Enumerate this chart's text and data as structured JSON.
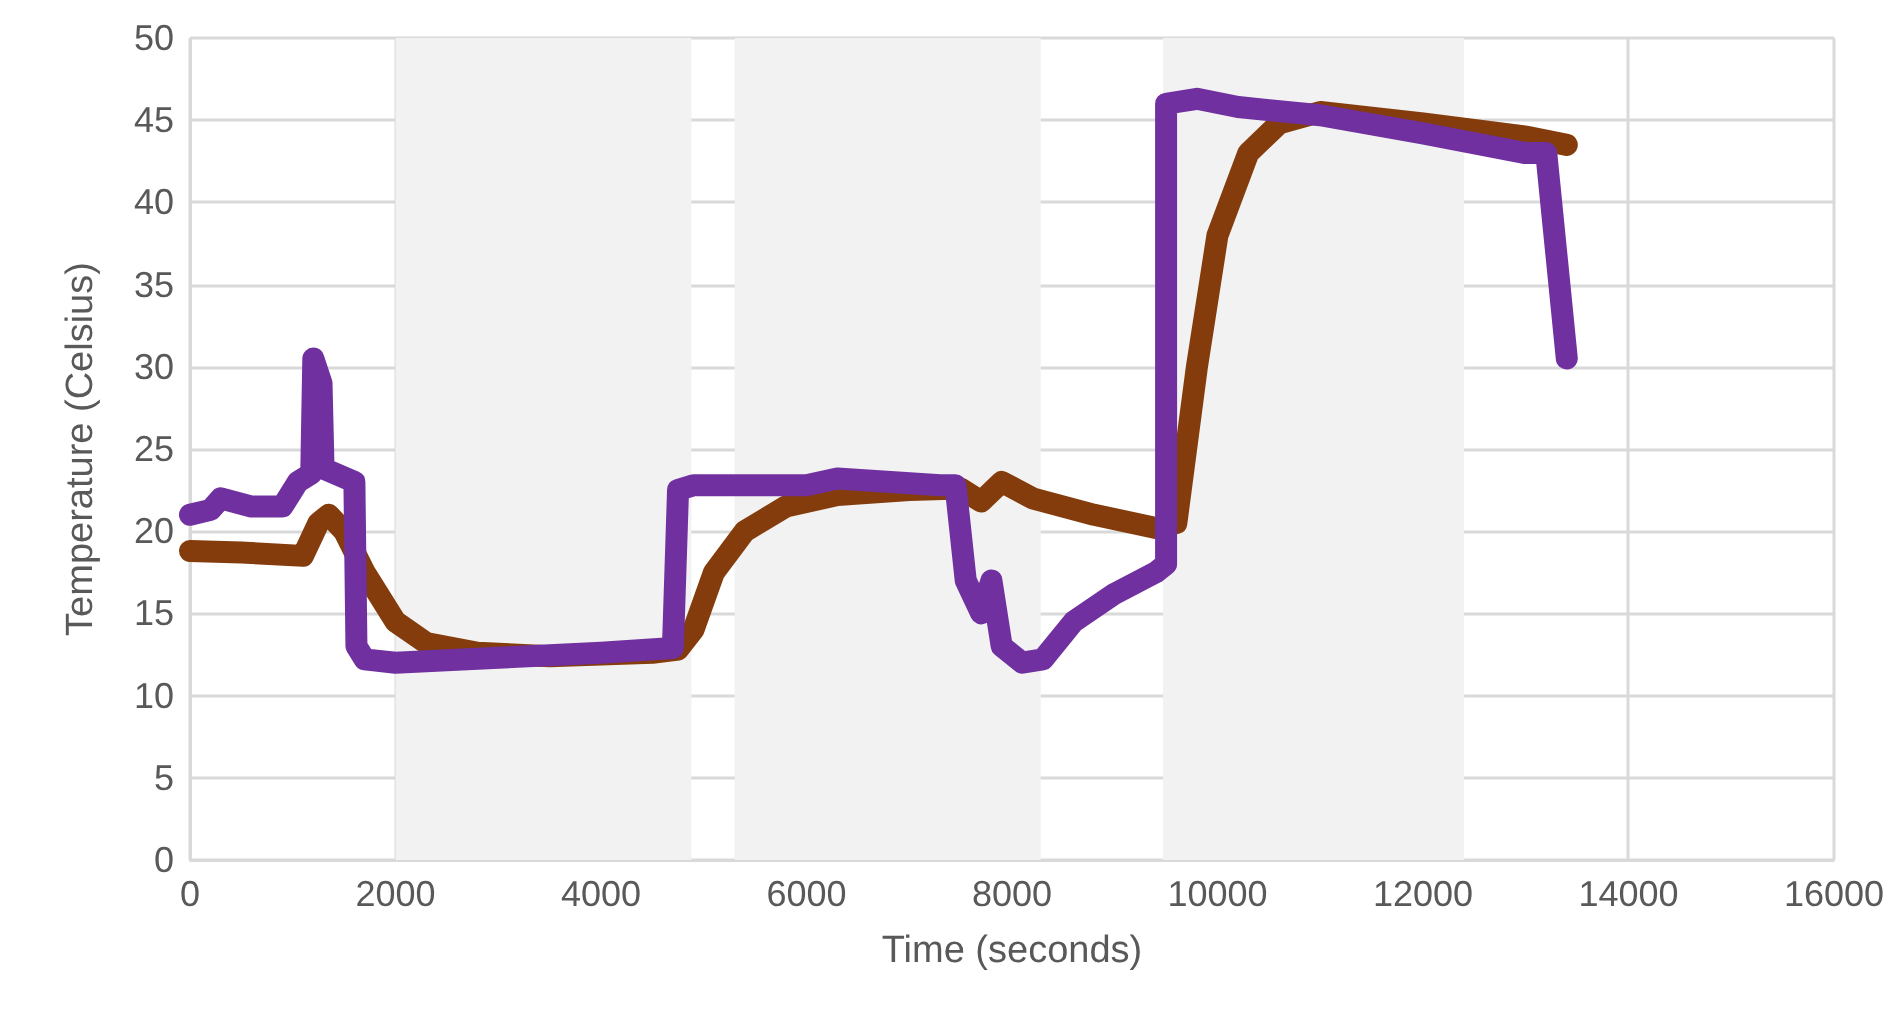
{
  "chart_data": {
    "type": "line",
    "xlabel": "Time (seconds)",
    "ylabel": "Temperature (Celsius)",
    "xlim": [
      0,
      16000
    ],
    "xticks": [
      0,
      2000,
      4000,
      6000,
      8000,
      10000,
      12000,
      14000,
      16000
    ],
    "ylim": [
      0,
      50
    ],
    "yticks": [
      0,
      5,
      10,
      15,
      20,
      25,
      30,
      35,
      40,
      45,
      50
    ],
    "grid": true,
    "line_style": "solid",
    "bands": [
      {
        "axis": "x",
        "from": 2000,
        "to": 4880,
        "color": "#f2f2f2"
      },
      {
        "axis": "x",
        "from": 5300,
        "to": 8280,
        "color": "#f2f2f2"
      },
      {
        "axis": "x",
        "from": 9470,
        "to": 12400,
        "color": "#f2f2f2"
      }
    ],
    "series": [
      {
        "color": "#843c0c",
        "x": [
          0,
          500,
          1100,
          1250,
          1350,
          1500,
          1700,
          2000,
          2300,
          2800,
          3500,
          4500,
          4750,
          4900,
          5100,
          5400,
          5800,
          6300,
          7000,
          7500,
          7700,
          7900,
          8200,
          8800,
          9400,
          9600,
          9800,
          10000,
          10300,
          10600,
          11000,
          12000,
          13000,
          13400
        ],
        "values": [
          18.8,
          18.7,
          18.5,
          20.5,
          21,
          20,
          17.5,
          14.5,
          13.2,
          12.6,
          12.4,
          12.6,
          12.8,
          14,
          17.5,
          20,
          21.5,
          22.2,
          22.5,
          22.6,
          21.8,
          23,
          22,
          21,
          20.2,
          20.5,
          30,
          38,
          43,
          44.8,
          45.5,
          44.8,
          44,
          43.5
        ]
      },
      {
        "color": "#7030a0",
        "x": [
          0,
          200,
          300,
          600,
          900,
          1050,
          1180,
          1200,
          1280,
          1300,
          1600,
          1620,
          1700,
          2000,
          3000,
          4000,
          4700,
          4750,
          4900,
          6000,
          6300,
          7300,
          7450,
          7550,
          7700,
          7800,
          7900,
          8100,
          8300,
          8600,
          9000,
          9400,
          9500,
          9500,
          9800,
          10200,
          11000,
          12000,
          13000,
          13200,
          13400
        ],
        "values": [
          21,
          21.3,
          22,
          21.5,
          21.5,
          23,
          23.5,
          30.5,
          29,
          23.8,
          23,
          13,
          12.2,
          12,
          12.3,
          12.6,
          12.9,
          22.5,
          22.8,
          22.8,
          23.2,
          22.8,
          22.8,
          17,
          15,
          17,
          13,
          12,
          12.2,
          14.5,
          16.2,
          17.5,
          18,
          46,
          46.3,
          45.8,
          45.3,
          44.2,
          43,
          43,
          30.5
        ]
      }
    ]
  }
}
